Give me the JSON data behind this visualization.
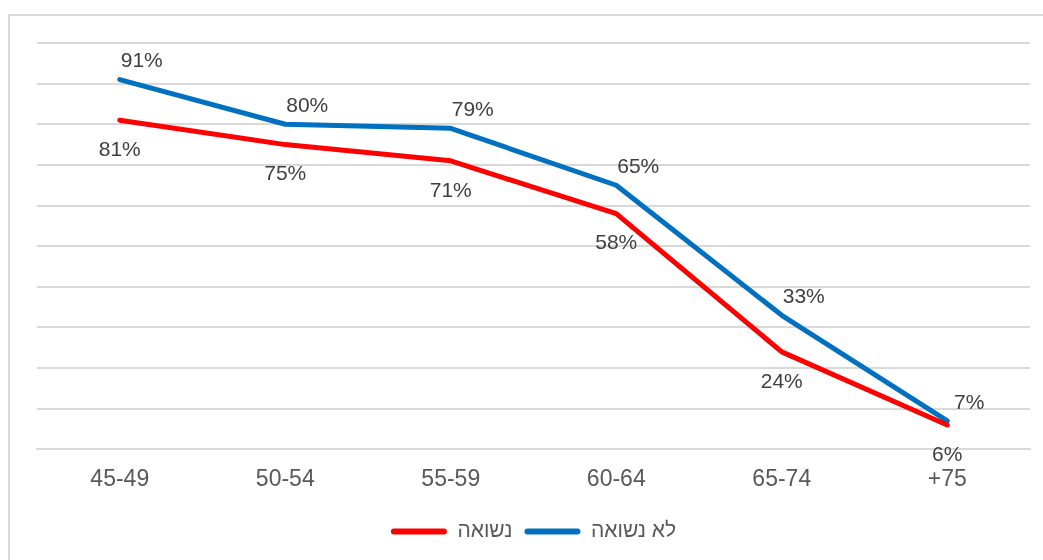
{
  "chart_data": {
    "type": "line",
    "categories": [
      "45-49",
      "50-54",
      "55-59",
      "60-64",
      "65-74",
      "+75"
    ],
    "series": [
      {
        "name": "נשואה",
        "color": "#ff0000",
        "values": [
          81,
          75,
          71,
          58,
          24,
          6
        ],
        "value_labels": [
          "81%",
          "75%",
          "71%",
          "58%",
          "24%",
          "6%"
        ]
      },
      {
        "name": "לא נשואה",
        "color": "#0070c0",
        "values": [
          91,
          80,
          79,
          65,
          33,
          7
        ],
        "value_labels": [
          "91%",
          "80%",
          "79%",
          "65%",
          "33%",
          "7%"
        ]
      }
    ],
    "ylim": [
      0,
      100
    ],
    "yticks": [
      {
        "value": 0,
        "label": null
      },
      {
        "value": 10,
        "label": null
      },
      {
        "value": 20,
        "label": null
      },
      {
        "value": 30,
        "label": null
      },
      {
        "value": 40,
        "label": null
      },
      {
        "value": 50,
        "label": null
      },
      {
        "value": 60,
        "label": null
      },
      {
        "value": 70,
        "label": null
      },
      {
        "value": 80,
        "label": null
      },
      {
        "value": 90,
        "label": null
      },
      {
        "value": 100,
        "label": null
      }
    ],
    "tick_labels": "x",
    "grid": "y",
    "legend": "bottom",
    "marker": "none",
    "line_style": "solid"
  }
}
